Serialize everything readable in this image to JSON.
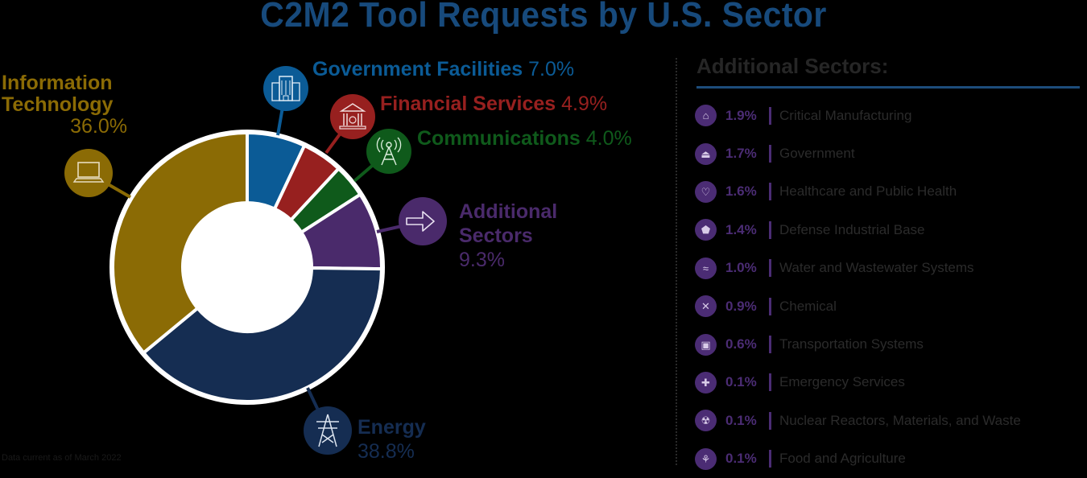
{
  "title": "C2M2 Tool Requests by U.S. Sector",
  "footnote": "Data current as of March 2022",
  "labels": {
    "it": {
      "name_line1": "Information",
      "name_line2": "Technology",
      "pct": "36.0%",
      "icon": "laptop-icon"
    },
    "gov_fac": {
      "name": "Government Facilities",
      "pct": "7.0%",
      "icon": "building-icon"
    },
    "fin": {
      "name": "Financial Services",
      "pct": "4.9%",
      "icon": "bank-icon"
    },
    "com": {
      "name": "Communications",
      "pct": "4.0%",
      "icon": "radio-tower-icon"
    },
    "add": {
      "name_line1": "Additional",
      "name_line2": "Sectors",
      "pct": "9.3%",
      "icon": "arrow-right-icon"
    },
    "energy": {
      "name": "Energy",
      "pct": "38.8%",
      "icon": "power-tower-icon"
    }
  },
  "panel": {
    "title": "Additional Sectors:",
    "items": [
      {
        "value": "1.9%",
        "label": "Critical Manufacturing",
        "icon": "factory-icon",
        "glyph": "⌂"
      },
      {
        "value": "1.7%",
        "label": "Government",
        "icon": "capitol-icon",
        "glyph": "⏏"
      },
      {
        "value": "1.6%",
        "label": "Healthcare and Public Health",
        "icon": "heart-pulse-icon",
        "glyph": "♡"
      },
      {
        "value": "1.4%",
        "label": "Defense Industrial Base",
        "icon": "pentagon-icon",
        "glyph": "⬟"
      },
      {
        "value": "1.0%",
        "label": "Water and Wastewater Systems",
        "icon": "water-icon",
        "glyph": "≈"
      },
      {
        "value": "0.9%",
        "label": "Chemical",
        "icon": "molecule-icon",
        "glyph": "✕"
      },
      {
        "value": "0.6%",
        "label": "Transportation Systems",
        "icon": "train-icon",
        "glyph": "▣"
      },
      {
        "value": "0.1%",
        "label": "Emergency Services",
        "icon": "ambulance-icon",
        "glyph": "✚"
      },
      {
        "value": "0.1%",
        "label": "Nuclear Reactors, Materials, and Waste",
        "icon": "nuclear-icon",
        "glyph": "☢"
      },
      {
        "value": "0.1%",
        "label": "Food and Agriculture",
        "icon": "wheat-icon",
        "glyph": "⚘"
      }
    ]
  },
  "colors": {
    "background": "#000000",
    "title": "#174a7c",
    "it": "#8b6b05",
    "gov_fac": "#0b5b96",
    "fin": "#97201f",
    "com": "#0f5a1b",
    "add": "#4a2a6b",
    "energy": "#152d52",
    "panel_accent": "#4b2c74",
    "panel_rule": "#1d4d7b"
  },
  "chart_data": {
    "type": "pie",
    "variant": "donut",
    "title": "C2M2 Tool Requests by U.S. Sector",
    "start_angle": "12 o'clock, clockwise",
    "categories": [
      "Government Facilities",
      "Financial Services",
      "Communications",
      "Additional Sectors",
      "Energy",
      "Information Technology"
    ],
    "values": [
      7.0,
      4.9,
      4.0,
      9.3,
      38.8,
      36.0
    ],
    "unit": "%",
    "colors": [
      "#0b5b96",
      "#97201f",
      "#0f5a1b",
      "#4a2a6b",
      "#152d52",
      "#8b6b05"
    ],
    "breakdown": {
      "parent": "Additional Sectors",
      "categories": [
        "Critical Manufacturing",
        "Government",
        "Healthcare and Public Health",
        "Defense Industrial Base",
        "Water and Wastewater Systems",
        "Chemical",
        "Transportation Systems",
        "Emergency Services",
        "Nuclear Reactors, Materials, and Waste",
        "Food and Agriculture"
      ],
      "values": [
        1.9,
        1.7,
        1.6,
        1.4,
        1.0,
        0.9,
        0.6,
        0.1,
        0.1,
        0.1
      ]
    },
    "annotations": [
      "Data current as of March 2022"
    ]
  }
}
